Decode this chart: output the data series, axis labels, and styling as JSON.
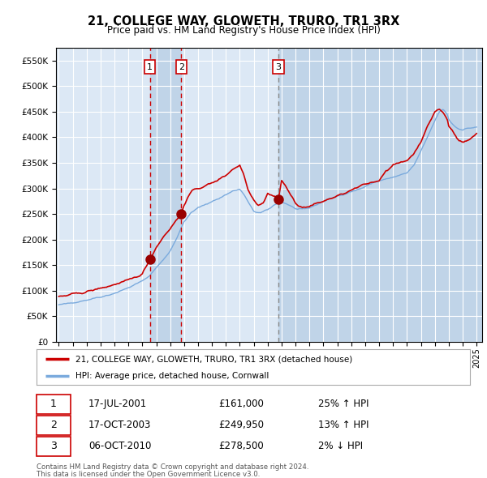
{
  "title": "21, COLLEGE WAY, GLOWETH, TRURO, TR1 3RX",
  "subtitle": "Price paid vs. HM Land Registry's House Price Index (HPI)",
  "legend_line1": "21, COLLEGE WAY, GLOWETH, TRURO, TR1 3RX (detached house)",
  "legend_line2": "HPI: Average price, detached house, Cornwall",
  "transactions": [
    {
      "num": 1,
      "date": "17-JUL-2001",
      "price": 161000,
      "pct": "25%",
      "dir": "↑"
    },
    {
      "num": 2,
      "date": "17-OCT-2003",
      "price": 249950,
      "pct": "13%",
      "dir": "↑"
    },
    {
      "num": 3,
      "date": "06-OCT-2010",
      "price": 278500,
      "pct": "2%",
      "dir": "↓"
    }
  ],
  "footer": "Contains HM Land Registry data © Crown copyright and database right 2024.\nThis data is licensed under the Open Government Licence v3.0.",
  "sale_dates_decimal": [
    2001.538,
    2003.792,
    2010.764
  ],
  "sale_prices": [
    161000,
    249950,
    278500
  ],
  "vline1_x": 2001.538,
  "vline2_x": 2003.792,
  "vline3_x": 2010.764,
  "shaded_region1_start": 2001.538,
  "shaded_region1_end": 2003.792,
  "shaded_region2_start": 2010.764,
  "shaded_region2_end": 2025.5,
  "ylim": [
    0,
    575000
  ],
  "xlim_start": 1994.8,
  "xlim_end": 2025.4,
  "bg_color": "#dce8f5",
  "red_line_color": "#cc0000",
  "blue_line_color": "#7aaadd",
  "vline_red_color": "#cc0000",
  "vline_grey_color": "#888888",
  "shade_color": "#c0d4e8",
  "grid_color": "#ffffff",
  "sale_marker_color": "#990000"
}
